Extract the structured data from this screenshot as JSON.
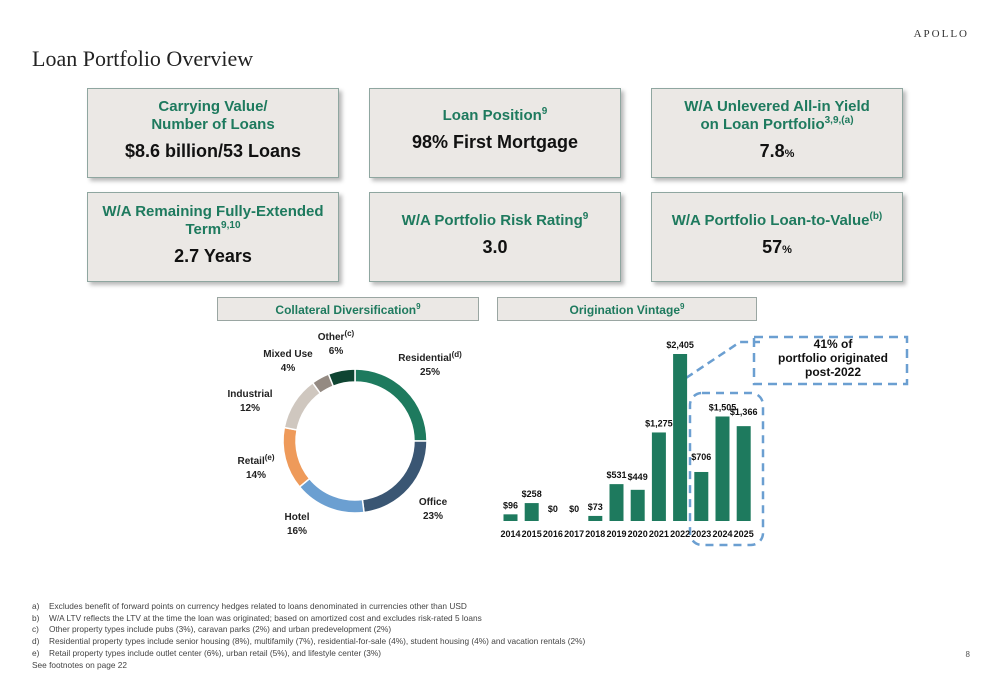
{
  "brand": "APOLLO",
  "title": "Loan Portfolio Overview",
  "kpis": [
    {
      "label": "Carrying Value/",
      "label2": "Number of Loans",
      "value": "$8.6 billion/53 Loans"
    },
    {
      "label": "Loan Position",
      "sup": "9",
      "value": "98% First Mortgage"
    },
    {
      "label": "W/A Unlevered All-in Yield",
      "label2": "on Loan Portfolio",
      "sup": "3,9,(a)",
      "value": "7.8",
      "unit": "%"
    },
    {
      "label": "W/A Remaining Fully-Extended",
      "label2": "Term",
      "sup": "9,10",
      "value": "2.7 Years"
    },
    {
      "label": "W/A Portfolio Risk Rating",
      "sup": "9",
      "value": "3.0"
    },
    {
      "label": "W/A Portfolio Loan-to-Value",
      "sup": "(b)",
      "value": "57",
      "unit": "%"
    }
  ],
  "collateral": {
    "title": "Collateral Diversification",
    "sup": "9"
  },
  "vintage": {
    "title": "Origination Vintage",
    "sup": "9"
  },
  "callout": {
    "line1": "41% of",
    "line2": "portfolio originated",
    "line3": "post-2022"
  },
  "chart_data": [
    {
      "type": "pie",
      "title": "Collateral Diversification",
      "slices": [
        {
          "label": "Residential",
          "sup": "(d)",
          "value": 25,
          "display": "25%",
          "color": "#1e7a5e"
        },
        {
          "label": "Office",
          "sup": "",
          "value": 23,
          "display": "23%",
          "color": "#3a5673"
        },
        {
          "label": "Hotel",
          "sup": "",
          "value": 16,
          "display": "16%",
          "color": "#6b9fd1"
        },
        {
          "label": "Retail",
          "sup": "(e)",
          "value": 14,
          "display": "14%",
          "color": "#ee9a5a"
        },
        {
          "label": "Industrial",
          "sup": "",
          "value": 12,
          "display": "12%",
          "color": "#cfc7bf"
        },
        {
          "label": "Mixed Use",
          "sup": "",
          "value": 4,
          "display": "4%",
          "color": "#948a82"
        },
        {
          "label": "Other",
          "sup": "(c)",
          "value": 6,
          "display": "6%",
          "color": "#0f4532"
        }
      ]
    },
    {
      "type": "bar",
      "title": "Origination Vintage",
      "categories": [
        "2014",
        "2015",
        "2016",
        "2017",
        "2018",
        "2019",
        "2020",
        "2021",
        "2022",
        "2023",
        "2024",
        "2025"
      ],
      "values": [
        96,
        258,
        0,
        0,
        73,
        531,
        449,
        1275,
        2405,
        706,
        1505,
        1366
      ],
      "labels": [
        "$96",
        "$258",
        "$0",
        "$0",
        "$73",
        "$531",
        "$449",
        "$1,275",
        "$2,405",
        "$706",
        "$1,505",
        "$1,366"
      ],
      "color": "#1e7a5e",
      "highlight": [
        "2023",
        "2024",
        "2025"
      ]
    }
  ],
  "footnotes": [
    {
      "mark": "a)",
      "text": "Excludes benefit of forward points on currency hedges related to loans denominated in currencies other than USD"
    },
    {
      "mark": "b)",
      "text": "W/A LTV reflects the LTV at the time the loan was originated; based on amortized cost and excludes risk-rated 5 loans"
    },
    {
      "mark": "c)",
      "text": "Other property types include pubs (3%), caravan parks (2%) and urban predevelopment (2%)"
    },
    {
      "mark": "d)",
      "text": "Residential property types include senior housing (8%), multifamily (7%), residential-for-sale (4%), student housing (4%) and vacation rentals (2%)"
    },
    {
      "mark": "e)",
      "text": "Retail property types include outlet center (6%), urban retail (5%), and lifestyle center (3%)"
    }
  ],
  "see_footnotes": "See footnotes on page 22",
  "page_number": "8"
}
